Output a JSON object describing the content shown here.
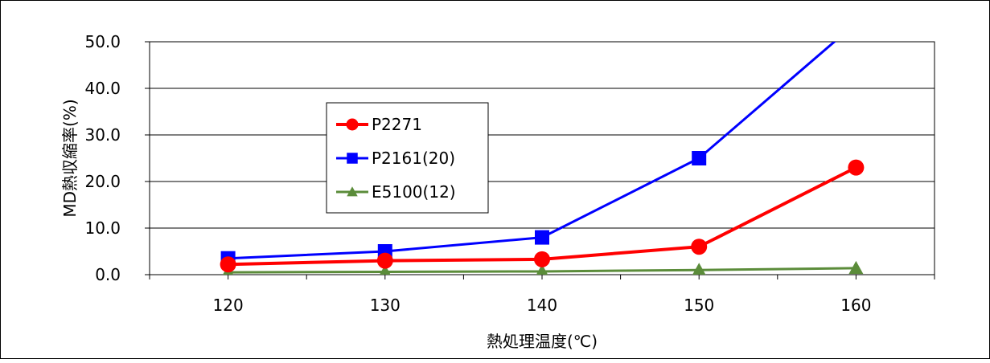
{
  "chart_data": {
    "type": "line",
    "title": "",
    "xlabel": "熱処理温度(℃)",
    "ylabel": "MD熱収縮率(%)",
    "x": [
      120,
      130,
      140,
      150,
      160
    ],
    "x_tick_labels": [
      "120",
      "130",
      "140",
      "150",
      "160"
    ],
    "xlim": [
      115,
      165
    ],
    "ylim": [
      0,
      50
    ],
    "y_tick_labels": [
      "0.0",
      "10.0",
      "20.0",
      "30.0",
      "40.0",
      "50.0"
    ],
    "grid": "horizontal",
    "legend_position": "upper-left-inside",
    "series": [
      {
        "name": "P2271",
        "values": [
          2.2,
          3.0,
          3.3,
          6.0,
          23.0
        ],
        "color": "#ff0000",
        "marker": "circle"
      },
      {
        "name": "P2161(20)",
        "values": [
          3.5,
          5.0,
          8.0,
          25.0,
          54.0
        ],
        "color": "#0000ff",
        "marker": "square"
      },
      {
        "name": "E5100(12)",
        "values": [
          0.5,
          0.6,
          0.7,
          1.0,
          1.4
        ],
        "color": "#5b8c3a",
        "marker": "triangle"
      }
    ]
  }
}
